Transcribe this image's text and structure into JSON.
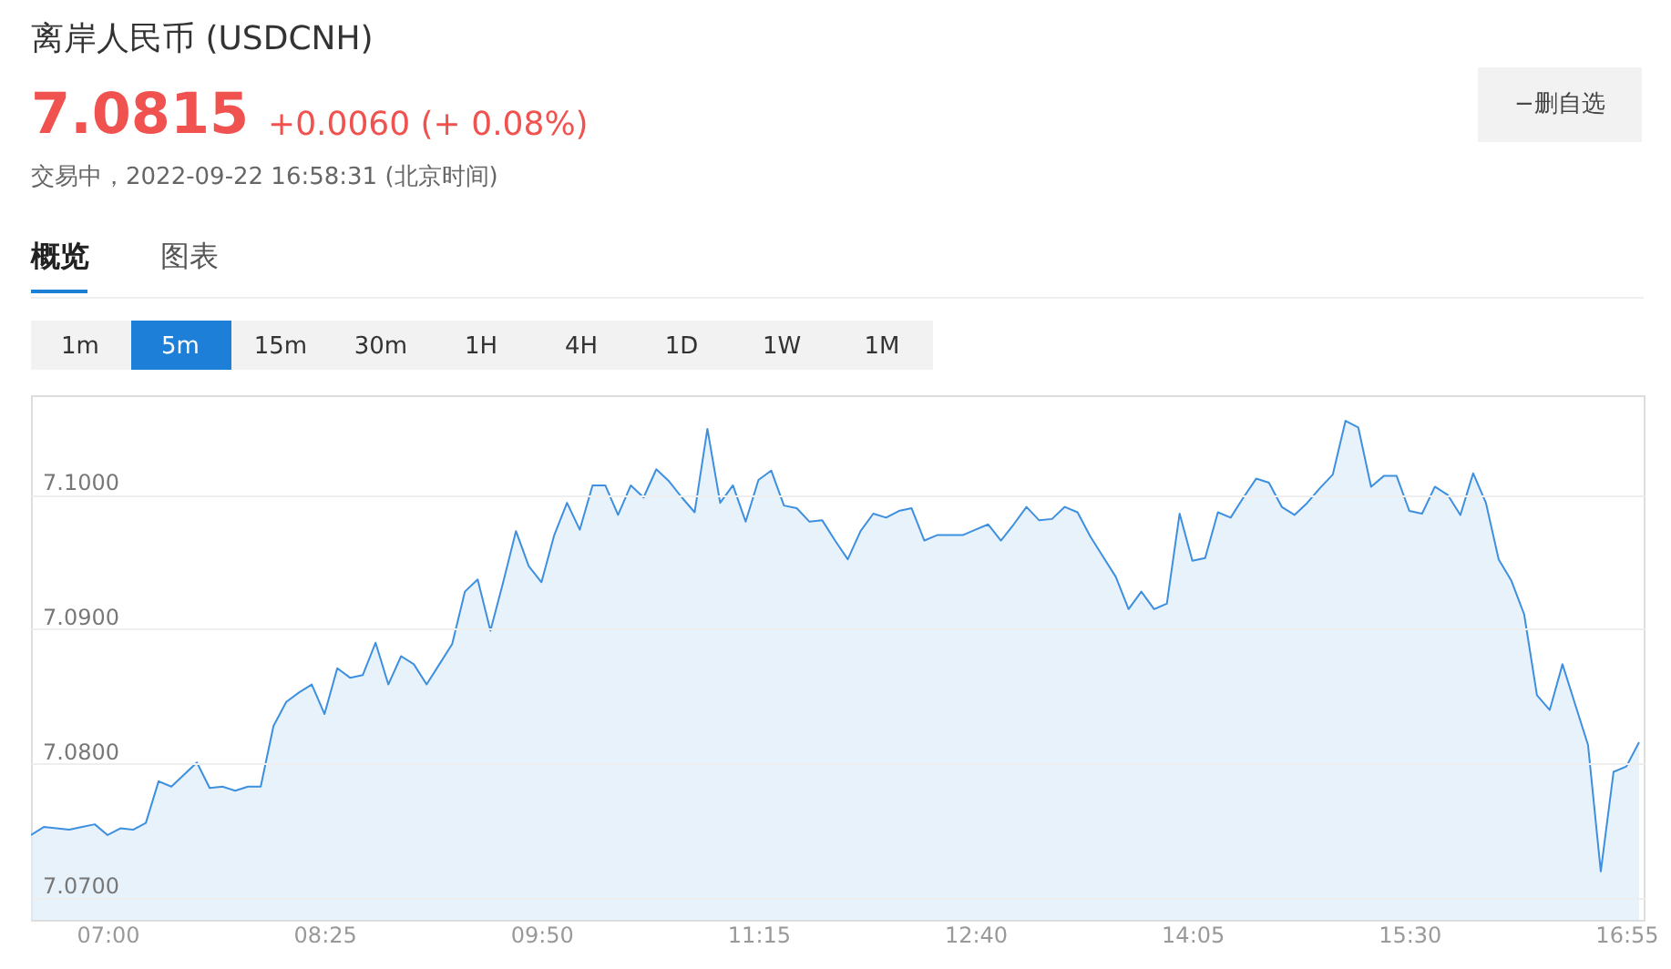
{
  "chart_data": {
    "type": "area",
    "title": "离岸人民币 (USDCNH)",
    "annotations": [
      "7.0815",
      "+0.0060 (+ 0.08%)",
      "交易中，2022-09-22 16:58:31 (北京时间)",
      "概览",
      "图表",
      "−删自选",
      "1m",
      "5m",
      "15m",
      "30m",
      "1H",
      "4H",
      "1D",
      "1W",
      "1M"
    ],
    "series": [
      {
        "color": "#3d8fe0",
        "values": [
          7.0747,
          7.0753,
          7.0752,
          7.0751,
          7.0753,
          7.0755,
          7.0747,
          7.0752,
          7.0751,
          7.0756,
          7.0787,
          7.0783,
          7.0792,
          7.0801,
          7.0782,
          7.0783,
          7.078,
          7.0783,
          7.0783,
          7.0828,
          7.0846,
          7.0853,
          7.0859,
          7.0837,
          7.0871,
          7.0864,
          7.0866,
          7.089,
          7.0859,
          7.088,
          7.0874,
          7.0859,
          7.0874,
          7.0889,
          7.0928,
          7.0937,
          7.0899,
          7.0935,
          7.0973,
          7.0947,
          7.0935,
          7.097,
          7.0994,
          7.0974,
          7.1007,
          7.1007,
          7.0985,
          7.1007,
          7.0998,
          7.1019,
          7.101,
          7.0998,
          7.0987,
          7.1049,
          7.0994,
          7.1007,
          7.098,
          7.1011,
          7.1018,
          7.0992,
          7.099,
          7.098,
          7.0981,
          7.0966,
          7.0952,
          7.0973,
          7.0986,
          7.0983,
          7.0988,
          7.099,
          7.0966,
          7.097,
          7.097,
          7.097,
          7.0974,
          7.0978,
          7.0966,
          7.0978,
          7.0991,
          7.0981,
          7.0982,
          7.0991,
          7.0987,
          7.0969,
          7.0954,
          7.0939,
          7.0915,
          7.0928,
          7.0915,
          7.0919,
          7.0986,
          7.0951,
          7.0953,
          7.0987,
          7.0983,
          7.0998,
          7.1012,
          7.1009,
          7.0991,
          7.0985,
          7.0994,
          7.1005,
          7.1015,
          7.1055,
          7.105,
          7.1006,
          7.1014,
          7.1014,
          7.0988,
          7.0986,
          7.1006,
          7.1,
          7.0985,
          7.1016,
          7.0994,
          7.0952,
          7.0936,
          7.0911,
          7.0851,
          7.084,
          7.0874,
          7.0844,
          7.0814,
          7.072,
          7.0794,
          7.0798,
          7.0816
        ]
      }
    ],
    "x": [
      6.5,
      6.5833,
      6.6667,
      6.75,
      6.8333,
      6.9167,
      7,
      7.0833,
      7.1667,
      7.25,
      7.3333,
      7.4167,
      7.5,
      7.5833,
      7.6667,
      7.75,
      7.8333,
      7.9167,
      8,
      8.0833,
      8.1667,
      8.25,
      8.3333,
      8.4167,
      8.5,
      8.5833,
      8.6667,
      8.75,
      8.8333,
      8.9167,
      9,
      9.0833,
      9.1667,
      9.25,
      9.3333,
      9.4167,
      9.5,
      9.5833,
      9.6667,
      9.75,
      9.8333,
      9.9167,
      10,
      10.0833,
      10.1667,
      10.25,
      10.3333,
      10.4167,
      10.5,
      10.5833,
      10.6667,
      10.75,
      10.8333,
      10.9167,
      11,
      11.0833,
      11.1667,
      11.25,
      11.3333,
      11.4167,
      11.5,
      11.5833,
      11.6667,
      11.75,
      11.8333,
      11.9167,
      12,
      12.0833,
      12.1667,
      12.25,
      12.3333,
      12.4167,
      12.5,
      12.5833,
      12.6667,
      12.75,
      12.8333,
      12.9167,
      13,
      13.0833,
      13.1667,
      13.25,
      13.3333,
      13.4167,
      13.5,
      13.5833,
      13.6667,
      13.75,
      13.8333,
      13.9167,
      14,
      14.0833,
      14.1667,
      14.25,
      14.3333,
      14.4167,
      14.5,
      14.5833,
      14.6667,
      14.75,
      14.8333,
      14.9167,
      15,
      15.0833,
      15.1667,
      15.25,
      15.3333,
      15.4167,
      15.5,
      15.5833,
      15.6667,
      15.75,
      15.8333,
      15.9167,
      16,
      16.0833,
      16.1667,
      16.25,
      16.3333,
      16.4167,
      16.5,
      16.5833,
      16.6667,
      16.75,
      16.8333,
      16.9167,
      17
    ],
    "xlim": [
      6.5,
      17.03
    ],
    "xticks": [
      {
        "value": 7,
        "label": "07:00"
      },
      {
        "value": 8.4167,
        "label": "08:25"
      },
      {
        "value": 9.8333,
        "label": "09:50"
      },
      {
        "value": 11.25,
        "label": "11:15"
      },
      {
        "value": 12.6667,
        "label": "12:40"
      },
      {
        "value": 14.0833,
        "label": "14:05"
      },
      {
        "value": 15.5,
        "label": "15:30"
      },
      {
        "value": 16.9167,
        "label": "16:55"
      }
    ],
    "ylim": [
      7.0684,
      7.1074
    ],
    "yticks": [
      {
        "value": 7.07,
        "label": "7.0700"
      },
      {
        "value": 7.08,
        "label": "7.0800"
      },
      {
        "value": 7.09,
        "label": "7.0900"
      },
      {
        "value": 7.1,
        "label": "7.1000"
      }
    ],
    "grid": "y"
  }
}
